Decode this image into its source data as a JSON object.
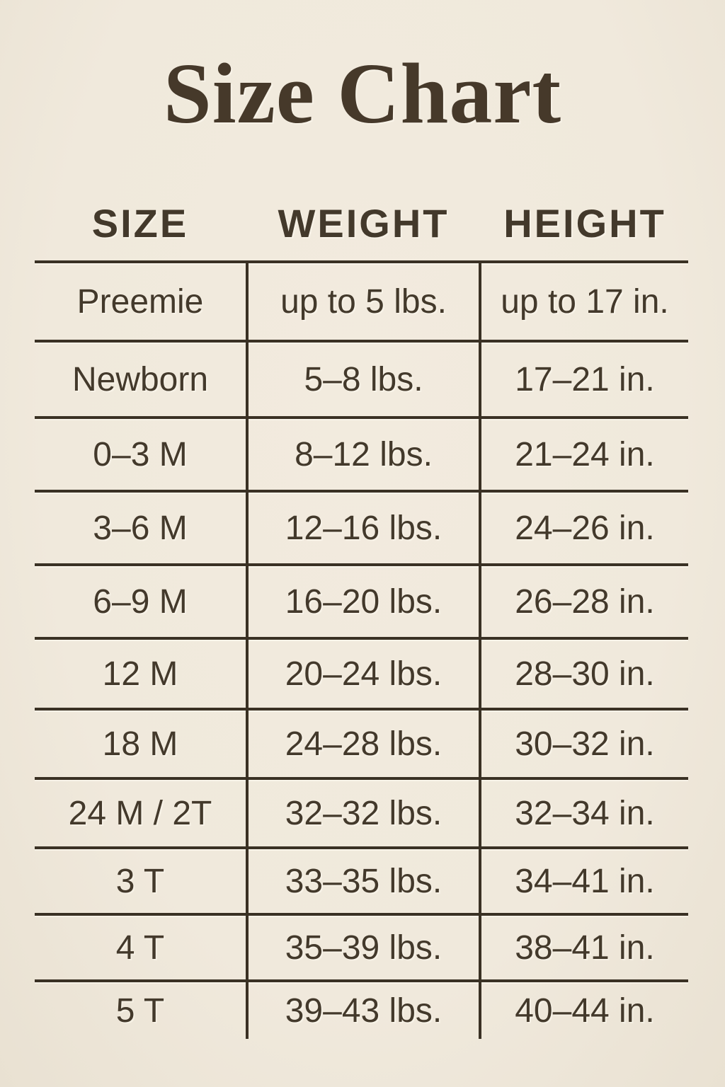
{
  "theme": {
    "background": "#F0E9DC",
    "ink": "#43392B",
    "line": "#3A3124",
    "title_ink": "#46392A"
  },
  "page": {
    "title": "Size Chart"
  },
  "table": {
    "headers": [
      "SIZE",
      "WEIGHT",
      "HEIGHT"
    ],
    "rows": [
      {
        "size": "Preemie",
        "weight": "up to 5 lbs.",
        "height": "up to 17 in."
      },
      {
        "size": "Newborn",
        "weight": "5–8 lbs.",
        "height": "17–21 in."
      },
      {
        "size": "0–3 M",
        "weight": "8–12 lbs.",
        "height": "21–24 in."
      },
      {
        "size": "3–6 M",
        "weight": "12–16 lbs.",
        "height": "24–26 in."
      },
      {
        "size": "6–9 M",
        "weight": "16–20 lbs.",
        "height": "26–28 in."
      },
      {
        "size": "12 M",
        "weight": "20–24 lbs.",
        "height": "28–30 in."
      },
      {
        "size": "18 M",
        "weight": "24–28 lbs.",
        "height": "30–32 in."
      },
      {
        "size": "24 M / 2T",
        "weight": "32–32 lbs.",
        "height": "32–34 in."
      },
      {
        "size": "3 T",
        "weight": "33–35 lbs.",
        "height": "34–41 in."
      },
      {
        "size": "4 T",
        "weight": "35–39 lbs.",
        "height": "38–41 in."
      },
      {
        "size": "5 T",
        "weight": "39–43 lbs.",
        "height": "40–44 in."
      }
    ]
  },
  "chart_data": {
    "type": "table",
    "title": "Size Chart",
    "columns": [
      "SIZE",
      "WEIGHT",
      "HEIGHT"
    ],
    "rows": [
      [
        "Preemie",
        "up to 5 lbs.",
        "up to 17 in."
      ],
      [
        "Newborn",
        "5–8 lbs.",
        "17–21 in."
      ],
      [
        "0–3 M",
        "8–12 lbs.",
        "21–24 in."
      ],
      [
        "3–6 M",
        "12–16 lbs.",
        "24–26 in."
      ],
      [
        "6–9 M",
        "16–20 lbs.",
        "26–28 in."
      ],
      [
        "12 M",
        "20–24 lbs.",
        "28–30 in."
      ],
      [
        "18 M",
        "24–28 lbs.",
        "30–32 in."
      ],
      [
        "24 M / 2T",
        "32–32 lbs.",
        "32–34 in."
      ],
      [
        "3 T",
        "33–35 lbs.",
        "34–41 in."
      ],
      [
        "4 T",
        "35–39 lbs.",
        "38–41 in."
      ],
      [
        "5 T",
        "39–43 lbs.",
        "40–44 in."
      ]
    ],
    "layout": {
      "grid": "horizontal rules between rows, vertical rules between columns, no outer border, no bottom rule"
    }
  }
}
